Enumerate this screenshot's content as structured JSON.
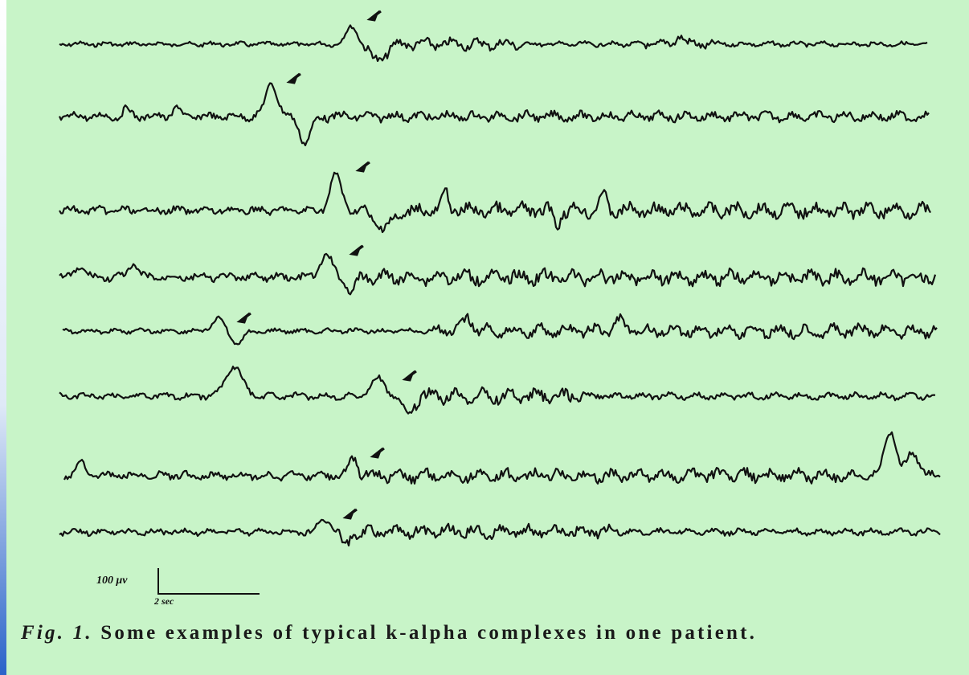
{
  "figure": {
    "label": "Fig. 1.",
    "caption": "Some examples of typical k-alpha complexes in one patient.",
    "scale_bar": {
      "amplitude_label": "100 μv",
      "time_label": "2 sec"
    },
    "trace_count": 8,
    "colors": {
      "background": "#c8f4c8",
      "trace": "#111111",
      "left_strip_accent": "#2a63c9"
    }
  }
}
